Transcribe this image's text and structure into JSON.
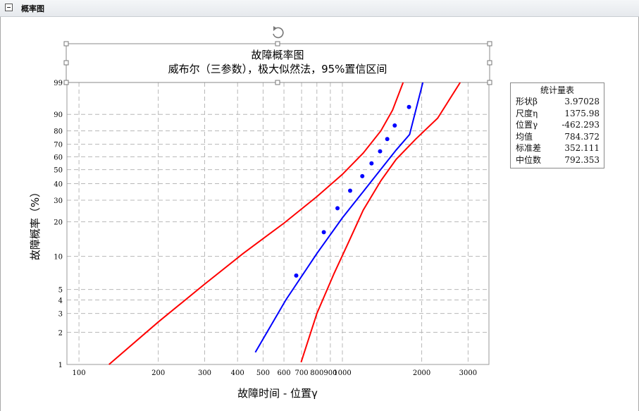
{
  "panel": {
    "title": "概率图"
  },
  "chart_data": {
    "type": "scatter",
    "title": "故障概率图",
    "subtitle": "威布尔（三参数），极大似然法，95%置信区间",
    "xlabel": "故障时间 - 位置γ",
    "ylabel": "故障概率（%）",
    "x_scale": "log",
    "y_scale": "weibull",
    "xlim": [
      90,
      3600
    ],
    "ylim": [
      1,
      99
    ],
    "x_ticks": [
      100,
      200,
      300,
      400,
      500,
      600,
      700,
      800,
      900,
      1000,
      2000,
      3000
    ],
    "x_tick_labels": [
      "100",
      "200",
      "300",
      "400",
      "500",
      "600",
      "700",
      "800",
      "900",
      "1000",
      "2000",
      "3000"
    ],
    "y_ticks": [
      1,
      2,
      3,
      4,
      5,
      10,
      20,
      30,
      40,
      50,
      60,
      70,
      80,
      90,
      99
    ],
    "y_tick_labels": [
      "1",
      "2",
      "3",
      "4",
      "5",
      "10",
      "20",
      "30",
      "40",
      "50",
      "60",
      "70",
      "80",
      "90",
      "99"
    ],
    "grid": true,
    "series": [
      {
        "type": "scatter",
        "color": "#0000ff",
        "points": [
          [
            668,
            6.7
          ],
          [
            850,
            16.3
          ],
          [
            958,
            25.9
          ],
          [
            1070,
            35.5
          ],
          [
            1190,
            45.2
          ],
          [
            1290,
            54.8
          ],
          [
            1390,
            64.4
          ],
          [
            1480,
            74.0
          ],
          [
            1580,
            83.6
          ],
          [
            1790,
            93.3
          ]
        ]
      },
      {
        "type": "line",
        "color": "#0000ff",
        "points": [
          [
            467,
            1.3
          ],
          [
            610,
            4.0
          ],
          [
            800,
            10.6
          ],
          [
            1000,
            21.6
          ],
          [
            1200,
            35.0
          ],
          [
            1400,
            50.3
          ],
          [
            1600,
            65.4
          ],
          [
            1800,
            77.4
          ],
          [
            2020,
            99
          ]
        ]
      },
      {
        "type": "line",
        "color": "#ff0000",
        "points": [
          [
            130,
            1.0
          ],
          [
            200,
            2.5
          ],
          [
            300,
            5.6
          ],
          [
            420,
            10.6
          ],
          [
            600,
            19.5
          ],
          [
            800,
            32.0
          ],
          [
            1000,
            46.5
          ],
          [
            1200,
            63.0
          ],
          [
            1400,
            80.0
          ],
          [
            1550,
            92.0
          ],
          [
            1700,
            99
          ]
        ]
      },
      {
        "type": "line",
        "color": "#ff0000",
        "points": [
          [
            697,
            1.05
          ],
          [
            800,
            3.0
          ],
          [
            930,
            7.0
          ],
          [
            1050,
            13.0
          ],
          [
            1200,
            25.0
          ],
          [
            1400,
            42.0
          ],
          [
            1600,
            58.0
          ],
          [
            1900,
            74.0
          ],
          [
            2300,
            88.0
          ],
          [
            2800,
            99
          ]
        ]
      }
    ]
  },
  "stats": {
    "title": "统计量表",
    "rows": [
      {
        "label": "形状β",
        "value": "3.97028"
      },
      {
        "label": "尺度η",
        "value": "1375.98"
      },
      {
        "label": "位置γ",
        "value": "-462.293"
      },
      {
        "label": "均值",
        "value": "784.372"
      },
      {
        "label": "标准差",
        "value": "352.111"
      },
      {
        "label": "中位数",
        "value": "792.353"
      }
    ]
  }
}
